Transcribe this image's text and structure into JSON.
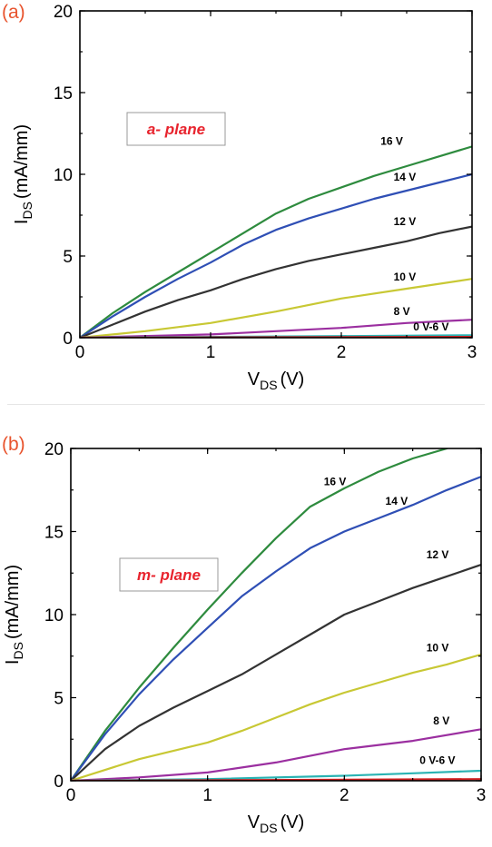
{
  "chart_data": [
    {
      "type": "line",
      "panel_label": "(a)",
      "annotation": "a- plane",
      "xlabel": "V",
      "xlabel_sub": "DS",
      "xlabel_unit": "(V)",
      "ylabel": "I",
      "ylabel_sub": "DS",
      "ylabel_unit": "(mA/mm)",
      "xlim": [
        0,
        3
      ],
      "ylim": [
        0,
        20
      ],
      "xticks": [
        "0",
        "1",
        "2",
        "3"
      ],
      "yticks": [
        "0",
        "5",
        "10",
        "15",
        "20"
      ],
      "series": [
        {
          "name": "16 V",
          "color": "#2e8b3e",
          "x": [
            0,
            0.25,
            0.5,
            0.75,
            1.0,
            1.25,
            1.5,
            1.75,
            2.0,
            2.25,
            2.5,
            2.75,
            3.0
          ],
          "y": [
            0,
            1.5,
            2.8,
            4.0,
            5.2,
            6.4,
            7.6,
            8.5,
            9.2,
            9.9,
            10.5,
            11.1,
            11.7
          ]
        },
        {
          "name": "14 V",
          "color": "#2f4fb5",
          "x": [
            0,
            0.25,
            0.5,
            0.75,
            1.0,
            1.25,
            1.5,
            1.75,
            2.0,
            2.25,
            2.5,
            2.75,
            3.0
          ],
          "y": [
            0,
            1.3,
            2.5,
            3.6,
            4.6,
            5.7,
            6.6,
            7.3,
            7.9,
            8.5,
            9.0,
            9.5,
            10.0
          ]
        },
        {
          "name": "12 V",
          "color": "#333333",
          "x": [
            0,
            0.25,
            0.5,
            0.75,
            1.0,
            1.25,
            1.5,
            1.75,
            2.0,
            2.25,
            2.5,
            2.75,
            3.0
          ],
          "y": [
            0,
            0.8,
            1.6,
            2.3,
            2.9,
            3.6,
            4.2,
            4.7,
            5.1,
            5.5,
            5.9,
            6.4,
            6.8
          ]
        },
        {
          "name": "10 V",
          "color": "#c8c834",
          "x": [
            0,
            0.5,
            1.0,
            1.5,
            2.0,
            2.5,
            3.0
          ],
          "y": [
            0,
            0.4,
            0.9,
            1.6,
            2.4,
            3.0,
            3.6
          ]
        },
        {
          "name": "8 V",
          "color": "#9b2fa0",
          "x": [
            0,
            1.0,
            2.0,
            2.5,
            3.0
          ],
          "y": [
            0,
            0.2,
            0.6,
            0.9,
            1.1
          ]
        },
        {
          "name": "0 V-6 V",
          "color": "#2ab3b3",
          "x": [
            0,
            1.0,
            2.0,
            3.0
          ],
          "y": [
            0,
            0.05,
            0.1,
            0.15
          ]
        },
        {
          "name": "",
          "color": "#d02020",
          "x": [
            0,
            3.0
          ],
          "y": [
            0,
            0.05
          ]
        }
      ],
      "curve_labels": [
        {
          "text": "16 V",
          "x": 2.3,
          "y": 11.8
        },
        {
          "text": "14 V",
          "x": 2.4,
          "y": 9.6
        },
        {
          "text": "12 V",
          "x": 2.4,
          "y": 6.9
        },
        {
          "text": "10 V",
          "x": 2.4,
          "y": 3.5
        },
        {
          "text": "8 V",
          "x": 2.4,
          "y": 1.4
        },
        {
          "text": "0 V-6 V",
          "x": 2.55,
          "y": 0.45
        }
      ]
    },
    {
      "type": "line",
      "panel_label": "(b)",
      "annotation": "m- plane",
      "xlabel": "V",
      "xlabel_sub": "DS",
      "xlabel_unit": "(V)",
      "ylabel": "I",
      "ylabel_sub": "DS",
      "ylabel_unit": "(mA/mm)",
      "xlim": [
        0,
        3
      ],
      "ylim": [
        0,
        20
      ],
      "xticks": [
        "0",
        "1",
        "2",
        "3"
      ],
      "yticks": [
        "0",
        "5",
        "10",
        "15",
        "20"
      ],
      "series": [
        {
          "name": "16 V",
          "color": "#2e8b3e",
          "x": [
            0,
            0.25,
            0.5,
            0.75,
            1.0,
            1.25,
            1.5,
            1.75,
            2.0,
            2.25,
            2.5,
            2.75
          ],
          "y": [
            0,
            3.0,
            5.6,
            8.0,
            10.3,
            12.5,
            14.6,
            16.5,
            17.6,
            18.6,
            19.4,
            20.0
          ]
        },
        {
          "name": "14 V",
          "color": "#2f4fb5",
          "x": [
            0,
            0.25,
            0.5,
            0.75,
            1.0,
            1.25,
            1.5,
            1.75,
            2.0,
            2.25,
            2.5,
            2.75,
            3.0
          ],
          "y": [
            0,
            2.8,
            5.2,
            7.3,
            9.2,
            11.1,
            12.6,
            14.0,
            15.0,
            15.8,
            16.6,
            17.5,
            18.3
          ]
        },
        {
          "name": "12 V",
          "color": "#333333",
          "x": [
            0,
            0.25,
            0.5,
            0.75,
            1.0,
            1.25,
            1.5,
            1.75,
            2.0,
            2.25,
            2.5,
            2.75,
            3.0
          ],
          "y": [
            0,
            1.9,
            3.3,
            4.4,
            5.4,
            6.4,
            7.6,
            8.8,
            10.0,
            10.8,
            11.6,
            12.3,
            13.0
          ]
        },
        {
          "name": "10 V",
          "color": "#c8c834",
          "x": [
            0,
            0.5,
            1.0,
            1.25,
            1.5,
            1.75,
            2.0,
            2.25,
            2.5,
            2.75,
            3.0
          ],
          "y": [
            0,
            1.3,
            2.3,
            3.0,
            3.8,
            4.6,
            5.3,
            5.9,
            6.5,
            7.0,
            7.6
          ]
        },
        {
          "name": "8 V",
          "color": "#9b2fa0",
          "x": [
            0,
            0.5,
            1.0,
            1.5,
            2.0,
            2.5,
            3.0
          ],
          "y": [
            0,
            0.2,
            0.5,
            1.1,
            1.9,
            2.4,
            3.1
          ]
        },
        {
          "name": "0 V-6 V",
          "color": "#2ab3b3",
          "x": [
            0,
            1.0,
            2.0,
            2.5,
            3.0
          ],
          "y": [
            0,
            0.1,
            0.3,
            0.45,
            0.6
          ]
        },
        {
          "name": "",
          "color": "#d02020",
          "x": [
            0,
            3.0
          ],
          "y": [
            0,
            0.1
          ]
        }
      ],
      "curve_labels": [
        {
          "text": "16 V",
          "x": 1.85,
          "y": 17.8
        },
        {
          "text": "14 V",
          "x": 2.3,
          "y": 16.6
        },
        {
          "text": "12 V",
          "x": 2.6,
          "y": 13.4
        },
        {
          "text": "10 V",
          "x": 2.6,
          "y": 7.8
        },
        {
          "text": "8 V",
          "x": 2.65,
          "y": 3.4
        },
        {
          "text": "0 V-6 V",
          "x": 2.55,
          "y": 1.0
        }
      ]
    }
  ]
}
